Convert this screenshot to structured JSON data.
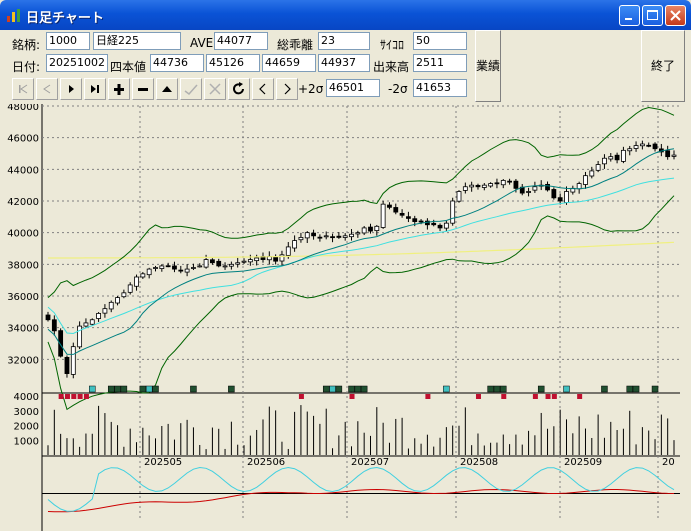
{
  "window": {
    "title": "日足チャート"
  },
  "form": {
    "code_label": "銘柄:",
    "code_value": "1000",
    "name_value": "日経225",
    "ave_label": "AVE",
    "ave_value": "44077",
    "deviation_label": "総乖離",
    "deviation_value": "23",
    "dice_label": "ｻｲｺﾛ",
    "dice_value": "50",
    "date_label": "日付:",
    "date_value": "20251002",
    "ohlc_label": "四本値",
    "open": "44736",
    "high": "45126",
    "low": "44659",
    "close": "44937",
    "volume_label": "出来高",
    "volume_value": "2511",
    "plus2sigma_label": "+2σ",
    "plus2sigma_value": "46501",
    "minus2sigma_label": "-2σ",
    "minus2sigma_value": "41653",
    "industry_button": "業績",
    "exit_button": "終了"
  },
  "toolbar": [
    {
      "name": "first",
      "icon": "first-icon",
      "enabled": false
    },
    {
      "name": "prev",
      "icon": "prev-icon",
      "enabled": false
    },
    {
      "name": "next",
      "icon": "next-icon",
      "enabled": true
    },
    {
      "name": "last",
      "icon": "last-icon",
      "enabled": true
    },
    {
      "name": "add",
      "icon": "plus-icon",
      "enabled": true
    },
    {
      "name": "remove",
      "icon": "minus-icon",
      "enabled": true
    },
    {
      "name": "up",
      "icon": "up-icon",
      "enabled": true
    },
    {
      "name": "check",
      "icon": "check-icon",
      "enabled": false
    },
    {
      "name": "cancel",
      "icon": "cancel-icon",
      "enabled": false
    },
    {
      "name": "refresh",
      "icon": "refresh-icon",
      "enabled": true
    },
    {
      "name": "scroll-left",
      "icon": "chevron-left-icon",
      "enabled": true
    },
    {
      "name": "scroll-right",
      "icon": "chevron-right-icon",
      "enabled": true
    }
  ],
  "colors": {
    "bg": "#ece9d8",
    "grid": "#808080",
    "candle": "#000000",
    "ma_short": "#008080",
    "ma_mid": "#40e0e0",
    "ma_long": "#f0f080",
    "bollinger": "#006400",
    "rsi_red": "#cc0000",
    "rsi_cyan": "#40d0e0"
  },
  "chart_data": {
    "type": "candlestick",
    "price_axis": {
      "ylim": [
        30000,
        48000
      ],
      "ticks": [
        "48000",
        "46000",
        "44000",
        "42000",
        "40000",
        "38000",
        "36000",
        "34000",
        "32000"
      ]
    },
    "volume_axis": {
      "ticks": [
        "4000",
        "3000",
        "2000",
        "1000"
      ]
    },
    "x_labels": [
      "202505",
      "202506",
      "202507",
      "202508",
      "202509",
      "20"
    ],
    "closes": [
      34500,
      33800,
      32200,
      31100,
      32800,
      34100,
      34300,
      34500,
      34900,
      35200,
      35600,
      35900,
      36200,
      36700,
      37200,
      37400,
      37700,
      37800,
      37900,
      37900,
      37700,
      37600,
      37700,
      37800,
      37900,
      38300,
      38100,
      37900,
      37900,
      38000,
      38100,
      38200,
      38300,
      38400,
      38300,
      38500,
      38200,
      38600,
      39100,
      39500,
      39700,
      40000,
      39800,
      39700,
      39800,
      39700,
      39700,
      39800,
      39900,
      40000,
      40300,
      40100,
      40400,
      41800,
      41600,
      41300,
      41100,
      40900,
      40700,
      40700,
      40500,
      40500,
      40300,
      40600,
      42000,
      42600,
      42900,
      43000,
      42900,
      43000,
      43100,
      43100,
      43300,
      43200,
      42800,
      42500,
      42600,
      42900,
      43000,
      42700,
      42200,
      42000,
      42600,
      42800,
      43100,
      43600,
      43900,
      44300,
      44700,
      44800,
      44600,
      45200,
      45300,
      45500,
      45600,
      45500,
      45300,
      45100,
      44800,
      44900
    ],
    "volume_range": [
      400,
      3400
    ],
    "price_indicators": [
      "25-day MA",
      "75-day MA",
      "200-day MA",
      "Bollinger ±2σ"
    ],
    "oscillators": [
      "red line",
      "cyan line"
    ]
  }
}
